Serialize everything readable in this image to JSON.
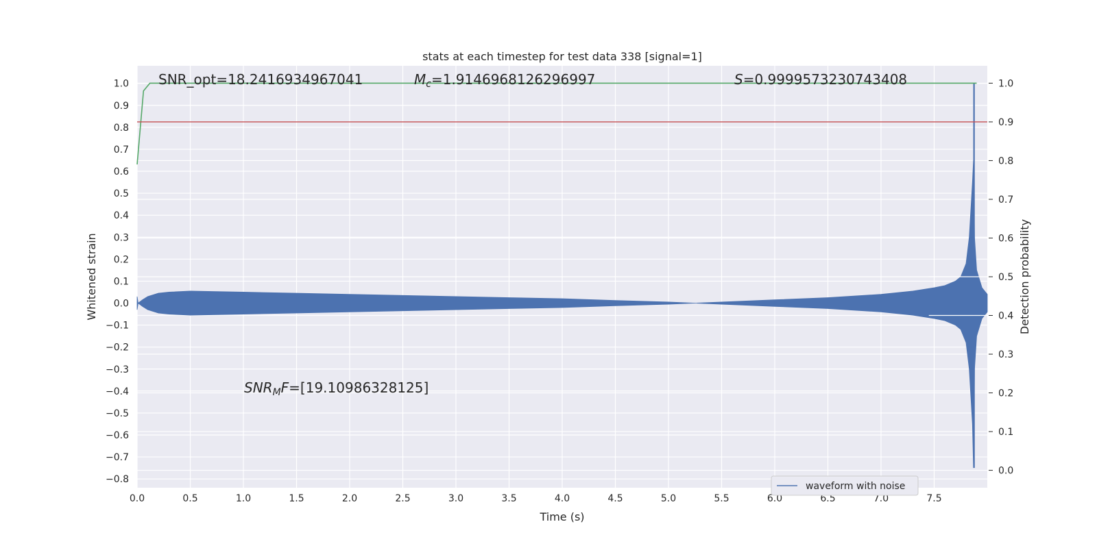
{
  "chart_data": {
    "type": "line",
    "title": "stats at each timestep for test data 338 [signal=1]",
    "xlabel": "Time (s)",
    "ylabel": "Whitened strain",
    "y2label": "Detection probability",
    "xlim": [
      0.0,
      8.0
    ],
    "ylim": [
      -0.84,
      1.08
    ],
    "y2lim": [
      -0.045,
      1.045
    ],
    "x_ticks": [
      "0.0",
      "0.5",
      "1.0",
      "1.5",
      "2.0",
      "2.5",
      "3.0",
      "3.5",
      "4.0",
      "4.5",
      "5.0",
      "5.5",
      "6.0",
      "6.5",
      "7.0",
      "7.5"
    ],
    "y_ticks": [
      "−0.8",
      "−0.7",
      "−0.6",
      "−0.5",
      "−0.4",
      "−0.3",
      "−0.2",
      "−0.1",
      "0.0",
      "0.1",
      "0.2",
      "0.3",
      "0.4",
      "0.5",
      "0.6",
      "0.7",
      "0.8",
      "0.9",
      "1.0"
    ],
    "y2_ticks": [
      "0.0",
      "0.1",
      "0.2",
      "0.3",
      "0.4",
      "0.5",
      "0.6",
      "0.7",
      "0.8",
      "0.9",
      "1.0"
    ],
    "grid": true,
    "legend_placement": "lower-center-right",
    "annotations": {
      "snr_opt": "SNR_opt=18.2416934967041",
      "mc_symbol": "M",
      "mc_sub": "c",
      "mc_value": "=1.9146968126296997",
      "s_symbol": "S",
      "s_value": "=0.9999573230743408",
      "snr_mf_symbol": "SNR",
      "snr_mf_sub": "M",
      "snr_mf_f": "F",
      "snr_mf_value": "=[19.10986328125]"
    },
    "series": [
      {
        "name": "waveform with noise",
        "axis": "left",
        "style": "envelope",
        "color": "#4c72b0",
        "x": [
          0.0,
          0.01,
          0.05,
          0.1,
          0.2,
          0.3,
          0.5,
          1.0,
          1.5,
          2.0,
          2.5,
          3.0,
          3.5,
          4.0,
          4.5,
          5.0,
          5.25,
          5.5,
          6.0,
          6.5,
          7.0,
          7.3,
          7.5,
          7.6,
          7.7,
          7.75,
          7.8,
          7.83,
          7.86,
          7.87,
          7.88,
          7.9,
          7.95,
          8.0
        ],
        "upper": [
          0.03,
          0.0,
          0.015,
          0.03,
          0.045,
          0.05,
          0.055,
          0.05,
          0.045,
          0.04,
          0.035,
          0.03,
          0.025,
          0.02,
          0.012,
          0.005,
          0.0,
          0.005,
          0.015,
          0.025,
          0.04,
          0.055,
          0.07,
          0.08,
          0.1,
          0.12,
          0.18,
          0.3,
          0.55,
          0.65,
          0.3,
          0.15,
          0.07,
          0.04
        ],
        "lower": [
          -0.03,
          0.0,
          -0.015,
          -0.03,
          -0.045,
          -0.05,
          -0.055,
          -0.05,
          -0.045,
          -0.04,
          -0.035,
          -0.03,
          -0.025,
          -0.02,
          -0.012,
          -0.005,
          0.0,
          -0.005,
          -0.015,
          -0.025,
          -0.04,
          -0.055,
          -0.07,
          -0.08,
          -0.1,
          -0.12,
          -0.18,
          -0.3,
          -0.55,
          -0.75,
          -0.3,
          -0.15,
          -0.07,
          -0.04
        ]
      },
      {
        "name": "",
        "axis": "left",
        "style": "vline",
        "color": "#4c72b0",
        "x": 7.875,
        "y_range": [
          -0.75,
          1.0
        ]
      },
      {
        "name": "",
        "axis": "right",
        "style": "line",
        "color": "#55a868",
        "x": [
          0.0,
          0.06,
          0.12,
          7.9
        ],
        "y": [
          0.79,
          0.98,
          1.0,
          1.0
        ]
      },
      {
        "name": "",
        "axis": "right",
        "style": "hline",
        "color": "#c44e52",
        "y": 0.9
      }
    ]
  }
}
